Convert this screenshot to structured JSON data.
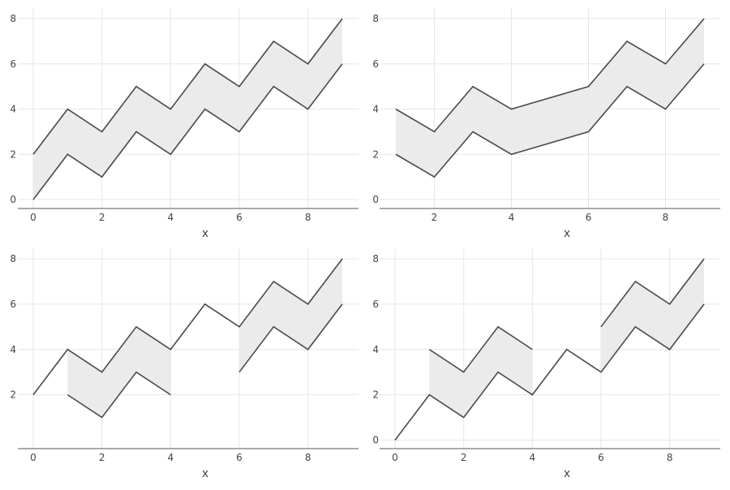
{
  "colors": {
    "line": "#4a4a4a",
    "fill": "#ebebeb",
    "grid": "#e6e6e6",
    "axis": "#555555",
    "tick_text": "#444444"
  },
  "chart_data": [
    {
      "type": "area",
      "xlabel": "x",
      "ylabel": "",
      "xlim": [
        0,
        9
      ],
      "ylim": [
        0,
        8
      ],
      "xticks": [
        0,
        2,
        4,
        6,
        8
      ],
      "xtick_labels": [
        "0",
        "2",
        "4",
        "6",
        "8"
      ],
      "yticks": [
        0,
        2,
        4,
        6,
        8
      ],
      "ytick_labels": [
        "0",
        "2",
        "4",
        "6",
        "8"
      ],
      "grid": true,
      "x": [
        0,
        1,
        2,
        3,
        4,
        5,
        6,
        7,
        8,
        9
      ],
      "lower": [
        0,
        2,
        1,
        3,
        2,
        4,
        3,
        5,
        4,
        6
      ],
      "upper": [
        2,
        4,
        3,
        5,
        4,
        6,
        5,
        7,
        6,
        8
      ],
      "fill_segments": [
        [
          0,
          9
        ]
      ]
    },
    {
      "type": "area",
      "xlabel": "x",
      "ylabel": "",
      "xlim": [
        1,
        9
      ],
      "ylim": [
        0,
        8
      ],
      "xticks": [
        2,
        4,
        6,
        8
      ],
      "xtick_labels": [
        "2",
        "4",
        "6",
        "8"
      ],
      "yticks": [
        0,
        2,
        4,
        6,
        8
      ],
      "ytick_labels": [
        "0",
        "2",
        "4",
        "6",
        "8"
      ],
      "grid": true,
      "x": [
        1,
        2,
        3,
        4,
        6,
        7,
        8,
        9
      ],
      "lower": [
        2,
        1,
        3,
        2,
        3,
        5,
        4,
        6
      ],
      "upper": [
        4,
        3,
        5,
        4,
        5,
        7,
        6,
        8
      ],
      "fill_segments": [
        [
          1,
          9
        ]
      ]
    },
    {
      "type": "area",
      "xlabel": "x",
      "ylabel": "",
      "xlim": [
        0,
        9
      ],
      "ylim": [
        1,
        8
      ],
      "xticks": [
        0,
        2,
        4,
        6,
        8
      ],
      "xtick_labels": [
        "0",
        "2",
        "4",
        "6",
        "8"
      ],
      "yticks": [
        2,
        4,
        6,
        8
      ],
      "ytick_labels": [
        "2",
        "4",
        "6",
        "8"
      ],
      "grid": true,
      "x": [
        0,
        1,
        2,
        3,
        4,
        5,
        6,
        7,
        8,
        9
      ],
      "lower": [
        null,
        2,
        1,
        3,
        2,
        null,
        3,
        5,
        4,
        6
      ],
      "upper": [
        2,
        4,
        3,
        5,
        4,
        6,
        5,
        7,
        6,
        8
      ],
      "fill_segments": [
        [
          1,
          4
        ],
        [
          6,
          9
        ]
      ]
    },
    {
      "type": "area",
      "xlabel": "x",
      "ylabel": "",
      "xlim": [
        0,
        9
      ],
      "ylim": [
        0,
        8
      ],
      "xticks": [
        0,
        2,
        4,
        6,
        8
      ],
      "xtick_labels": [
        "0",
        "2",
        "4",
        "6",
        "8"
      ],
      "yticks": [
        0,
        2,
        4,
        6,
        8
      ],
      "ytick_labels": [
        "0",
        "2",
        "4",
        "6",
        "8"
      ],
      "grid": true,
      "x": [
        0,
        1,
        2,
        3,
        4,
        5,
        6,
        7,
        8,
        9
      ],
      "lower": [
        0,
        2,
        1,
        3,
        2,
        4,
        3,
        5,
        4,
        6
      ],
      "upper": [
        null,
        4,
        3,
        5,
        4,
        null,
        5,
        7,
        6,
        8
      ],
      "fill_segments": [
        [
          1,
          4
        ],
        [
          6,
          9
        ]
      ]
    }
  ]
}
